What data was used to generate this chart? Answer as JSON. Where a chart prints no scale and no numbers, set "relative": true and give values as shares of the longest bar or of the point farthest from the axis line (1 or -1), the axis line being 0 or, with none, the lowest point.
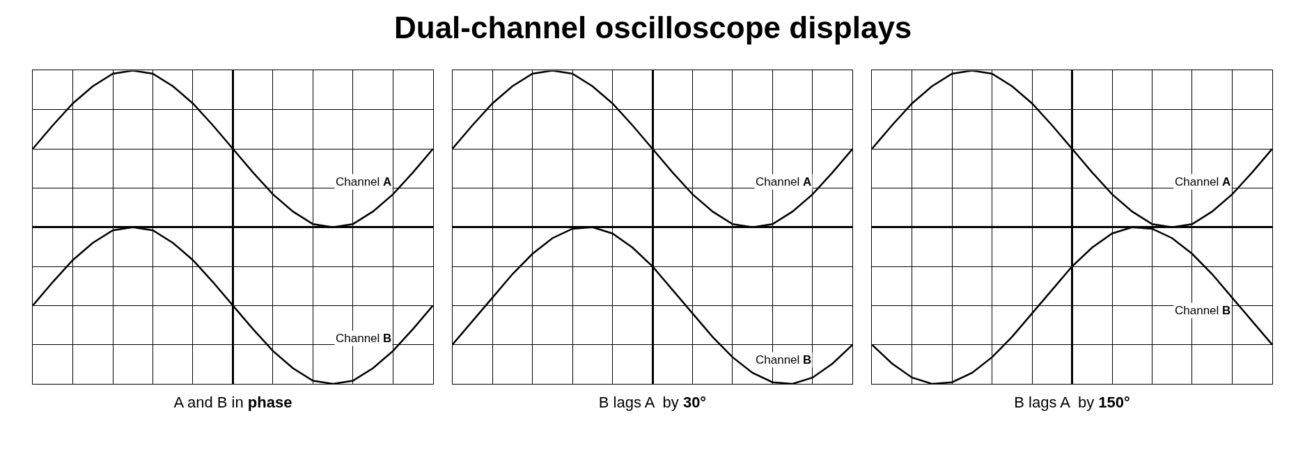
{
  "chart_data": [
    {
      "type": "line",
      "xlabel": "A and B in phase",
      "relative": true,
      "grid": true,
      "tick_labels": false,
      "categories": [
        null,
        null,
        null,
        null,
        null,
        null,
        null,
        null,
        null,
        null,
        null,
        null,
        null,
        null,
        null,
        null,
        null,
        null,
        null,
        null,
        null
      ],
      "series": [
        {
          "name": "Channel A",
          "color": "#000000",
          "values": [
            0.5,
            0.65,
            0.79,
            0.9,
            0.98,
            1,
            0.98,
            0.9,
            0.79,
            0.65,
            0.5,
            0.35,
            0.21,
            0.1,
            0.02,
            0,
            0.02,
            0.1,
            0.21,
            0.35,
            0.5
          ]
        },
        {
          "name": "Channel B",
          "color": "#000000",
          "values": [
            -0.5,
            -0.35,
            -0.21,
            -0.1,
            -0.02,
            0,
            -0.02,
            -0.1,
            -0.21,
            -0.35,
            -0.5,
            -0.65,
            -0.79,
            -0.9,
            -0.98,
            -1,
            -0.98,
            -0.9,
            -0.79,
            -0.65,
            -0.5
          ]
        }
      ]
    },
    {
      "type": "line",
      "title": "Dual-channel oscilloscope displays",
      "xlabel": "B lags A  by 30°",
      "relative": true,
      "grid": true,
      "tick_labels": false,
      "categories": [
        null,
        null,
        null,
        null,
        null,
        null,
        null,
        null,
        null,
        null,
        null,
        null,
        null,
        null,
        null,
        null,
        null,
        null,
        null,
        null,
        null
      ],
      "series": [
        {
          "name": "Channel A",
          "color": "#000000",
          "values": [
            0.5,
            0.65,
            0.79,
            0.9,
            0.98,
            1,
            0.98,
            0.9,
            0.79,
            0.65,
            0.5,
            0.35,
            0.21,
            0.1,
            0.02,
            0,
            0.02,
            0.1,
            0.21,
            0.35,
            0.5
          ]
        },
        {
          "name": "Channel B",
          "color": "#000000",
          "values": [
            -0.75,
            -0.6,
            -0.45,
            -0.3,
            -0.17,
            -0.07,
            -0.01,
            0,
            -0.04,
            -0.13,
            -0.25,
            -0.4,
            -0.55,
            -0.7,
            -0.83,
            -0.93,
            -0.99,
            -1,
            -0.96,
            -0.87,
            -0.75
          ]
        }
      ]
    },
    {
      "type": "line",
      "xlabel": "B lags A  by 150°",
      "relative": true,
      "grid": true,
      "tick_labels": false,
      "categories": [
        null,
        null,
        null,
        null,
        null,
        null,
        null,
        null,
        null,
        null,
        null,
        null,
        null,
        null,
        null,
        null,
        null,
        null,
        null,
        null,
        null
      ],
      "series": [
        {
          "name": "Channel A",
          "color": "#000000",
          "values": [
            0.5,
            0.65,
            0.79,
            0.9,
            0.98,
            1,
            0.98,
            0.9,
            0.79,
            0.65,
            0.5,
            0.35,
            0.21,
            0.1,
            0.02,
            0,
            0.02,
            0.1,
            0.21,
            0.35,
            0.5
          ]
        },
        {
          "name": "Channel B",
          "color": "#000000",
          "values": [
            -0.75,
            -0.87,
            -0.96,
            -1,
            -0.99,
            -0.93,
            -0.83,
            -0.7,
            -0.55,
            -0.4,
            -0.25,
            -0.13,
            -0.04,
            0,
            -0.01,
            -0.07,
            -0.17,
            -0.3,
            -0.45,
            -0.6,
            -0.75
          ]
        }
      ]
    }
  ]
}
